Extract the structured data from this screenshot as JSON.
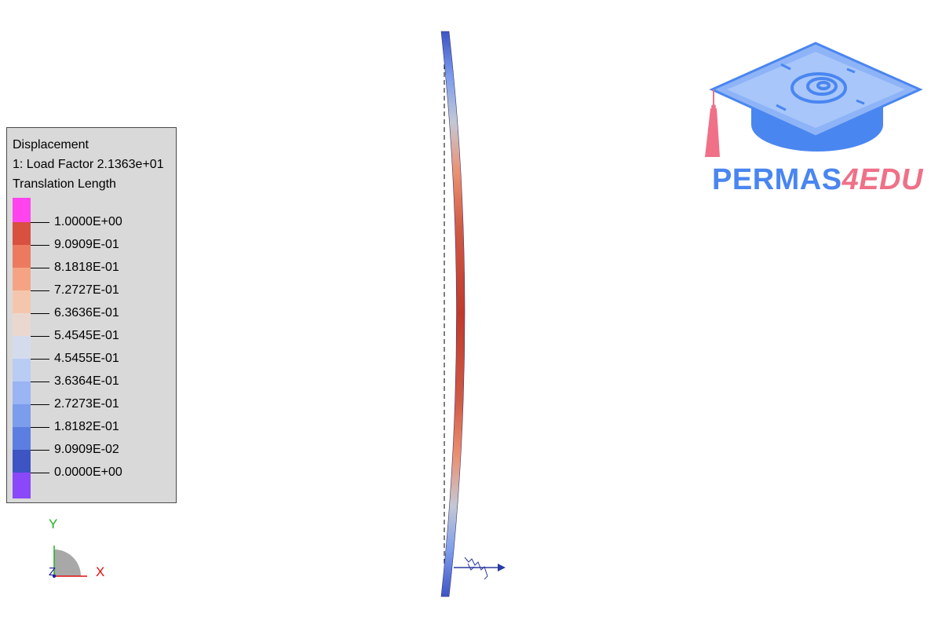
{
  "legend": {
    "title": "Displacement",
    "subtitle1": "1: Load Factor 2.1363e+01",
    "subtitle2": "Translation Length",
    "colors": [
      "#ff44ee",
      "#d85040",
      "#ec7a60",
      "#f4a484",
      "#f5c6ae",
      "#ead8d0",
      "#d4dcec",
      "#b8ccf4",
      "#9ab4f4",
      "#7c9cec",
      "#5c7ee0",
      "#3e54c4",
      "#8a48f8"
    ],
    "ticks": [
      "1.0000E+00",
      "9.0909E-01",
      "8.1818E-01",
      "7.2727E-01",
      "6.3636E-01",
      "5.4545E-01",
      "4.5455E-01",
      "3.6364E-01",
      "2.7273E-01",
      "1.8182E-01",
      "9.0909E-02",
      "0.0000E+00"
    ]
  },
  "triad": {
    "y_label": "Y",
    "x_label": "X",
    "z_label": "Z"
  },
  "logo": {
    "brand": "PERMAS",
    "suffix": "4EDU"
  },
  "colors": {
    "background": "#ffffff",
    "legend_background": "#d9d9d9",
    "logo_blue": "#4a86f0",
    "logo_pink": "#f07088",
    "deformed_max": "#c84030",
    "deformed_min": "#3e54c4"
  },
  "scene": {
    "undeformed_shape": "dashed-line",
    "deformed_shape": "bent-beam",
    "load_arrow_icon": "force-arrow-icon",
    "support_icon": "spring-support-icon"
  }
}
